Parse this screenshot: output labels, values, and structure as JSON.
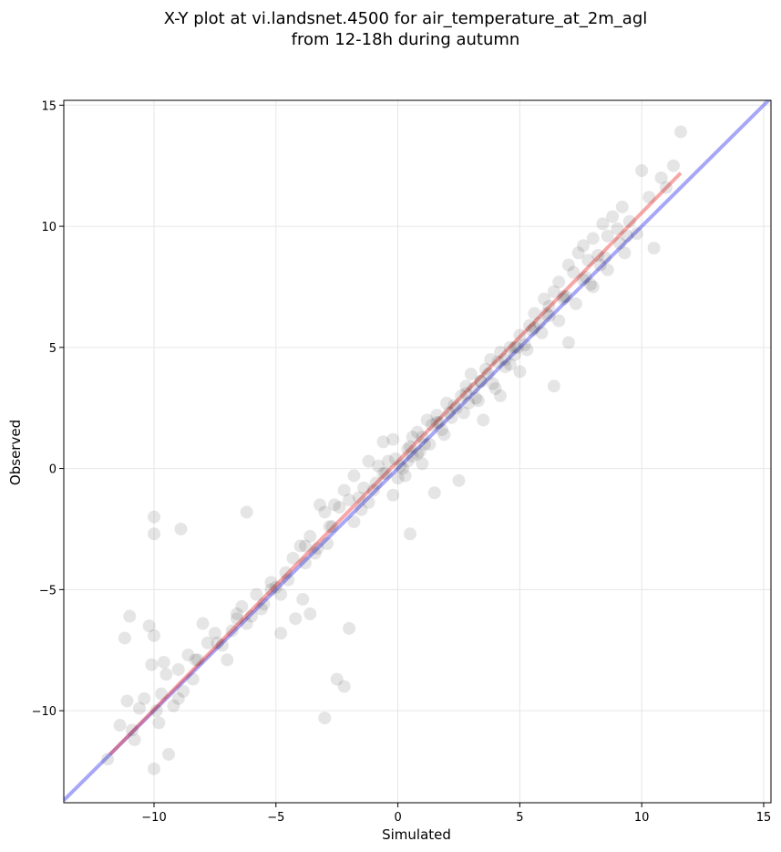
{
  "chart_data": {
    "type": "scatter",
    "title_lines": [
      "X-Y plot at vi.landsnet.4500 for air_temperature_at_2m_agl",
      "from 12-18h during autumn"
    ],
    "xlabel": "Simulated",
    "ylabel": "Observed",
    "xlim": [
      -13.7,
      15.3
    ],
    "ylim": [
      -13.8,
      15.2
    ],
    "xticks": [
      -10,
      -5,
      0,
      5,
      10,
      15
    ],
    "yticks": [
      -10,
      -5,
      0,
      5,
      10,
      15
    ],
    "xtick_labels": [
      "−10",
      "−5",
      "0",
      "5",
      "10",
      "15"
    ],
    "ytick_labels": [
      "−10",
      "−5",
      "0",
      "5",
      "10",
      "15"
    ],
    "grid": true,
    "colors": {
      "points": "#000000",
      "identity_line": "#3b3bf0",
      "regression_line": "#f03b3b",
      "grid": "#e6e6e6"
    },
    "identity_line": {
      "x": [
        -13.7,
        15.3
      ],
      "y": [
        -13.7,
        15.3
      ]
    },
    "regression_line": {
      "x": [
        -11.8,
        11.6
      ],
      "y": [
        -11.8,
        12.2
      ]
    },
    "series": [
      {
        "x": [
          -11.9,
          -11.4,
          -11.2,
          -11.1,
          -10.9,
          -10.8,
          -10.6,
          -10.4,
          -10.1,
          -10.0,
          -10.0,
          -9.9,
          -9.8,
          -9.7,
          -9.6,
          -9.4,
          -9.2,
          -9.0,
          -8.8,
          -8.6,
          -8.4,
          -8.2,
          -8.0,
          -7.8,
          -7.5,
          -7.2,
          -7.0,
          -6.8,
          -6.6,
          -6.4,
          -6.2,
          -6.0,
          -5.8,
          -5.5,
          -5.2,
          -5.0,
          -4.8,
          -4.5,
          -4.3,
          -4.0,
          -3.8,
          -3.6,
          -3.4,
          -3.2,
          -3.0,
          -2.8,
          -2.6,
          -2.4,
          -2.2,
          -2.0,
          -1.8,
          -1.6,
          -1.4,
          -1.2,
          -1.0,
          -0.8,
          -0.6,
          -0.4,
          -0.2,
          0.0,
          0.2,
          0.4,
          0.6,
          0.8,
          1.0,
          1.2,
          1.4,
          1.6,
          1.8,
          2.0,
          2.2,
          2.4,
          2.6,
          2.8,
          3.0,
          3.2,
          3.4,
          3.6,
          3.8,
          4.0,
          4.2,
          4.4,
          4.6,
          4.8,
          5.0,
          5.2,
          5.4,
          5.6,
          5.8,
          6.0,
          6.2,
          6.4,
          6.6,
          6.8,
          7.0,
          7.2,
          7.4,
          7.6,
          7.8,
          8.0,
          8.2,
          8.4,
          8.6,
          8.8,
          9.0,
          9.2,
          9.5,
          9.8,
          10.0,
          10.3,
          10.5,
          10.8,
          11.0,
          11.3,
          11.6,
          -10.0,
          -10.0,
          -8.9,
          -6.2,
          -3.3,
          -2.0,
          -2.5,
          -2.2,
          -3.0,
          -3.6,
          -1.2,
          -0.6,
          0.5,
          1.5,
          2.5,
          3.5,
          4.2,
          5.0,
          6.4,
          7.0,
          8.0,
          -9.0,
          -9.5,
          -10.2,
          -11.0,
          -4.8,
          -4.2,
          -3.9,
          -5.2,
          -2.9,
          -1.8,
          -0.2,
          0.3,
          0.8,
          1.3,
          1.9,
          2.7,
          3.3,
          3.9,
          4.6,
          5.3,
          5.9,
          6.6,
          7.3,
          7.9,
          8.6,
          9.3,
          0.1,
          0.4,
          0.6,
          0.9,
          1.1,
          -0.9,
          -0.5,
          1.7,
          2.1,
          2.9,
          3.1,
          3.7,
          4.4,
          4.9,
          5.6,
          6.1,
          6.8,
          7.6,
          8.3,
          9.1,
          -1.5,
          -2.7,
          -3.8,
          -4.6,
          -5.6,
          -6.6,
          -7.4,
          -8.3,
          -0.1,
          0.5,
          1.0,
          1.6,
          2.3,
          2.8,
          3.4,
          4.1,
          4.8,
          5.5,
          6.2,
          6.9,
          7.7,
          8.5,
          9.4
        ],
        "y": [
          -12.0,
          -10.6,
          -7.0,
          -9.6,
          -10.8,
          -11.2,
          -9.9,
          -9.5,
          -8.1,
          -6.9,
          -12.4,
          -10.0,
          -10.5,
          -9.3,
          -8.0,
          -11.8,
          -9.8,
          -8.3,
          -9.2,
          -7.7,
          -8.7,
          -7.9,
          -6.4,
          -7.2,
          -6.8,
          -7.3,
          -7.9,
          -6.7,
          -6.2,
          -5.7,
          -6.4,
          -6.1,
          -5.2,
          -5.6,
          -4.7,
          -4.9,
          -5.2,
          -4.6,
          -3.7,
          -3.2,
          -3.9,
          -2.8,
          -3.5,
          -1.5,
          -1.8,
          -2.4,
          -1.5,
          -1.6,
          -0.9,
          -1.3,
          -0.3,
          -1.2,
          -0.8,
          -1.4,
          -0.9,
          0.1,
          -0.2,
          0.3,
          1.2,
          -0.4,
          0.0,
          0.8,
          1.3,
          1.5,
          0.2,
          2.0,
          1.8,
          2.2,
          1.6,
          2.7,
          2.1,
          2.5,
          3.0,
          3.4,
          3.9,
          2.9,
          3.6,
          4.1,
          4.5,
          3.3,
          4.8,
          4.2,
          5.0,
          4.7,
          5.5,
          5.1,
          5.9,
          6.4,
          6.0,
          7.0,
          6.7,
          7.3,
          7.7,
          7.1,
          8.4,
          8.1,
          8.9,
          9.2,
          8.6,
          9.5,
          8.8,
          10.1,
          9.6,
          10.4,
          9.9,
          10.8,
          10.2,
          9.7,
          12.3,
          11.2,
          9.1,
          12.0,
          11.6,
          12.5,
          13.9,
          -2.0,
          -2.7,
          -2.5,
          -1.8,
          -3.3,
          -6.6,
          -8.7,
          -9.0,
          -10.3,
          -6.0,
          0.3,
          1.1,
          -2.7,
          -1.0,
          -0.5,
          2.0,
          3.0,
          4.0,
          3.4,
          5.2,
          7.5,
          -9.5,
          -8.5,
          -6.5,
          -6.1,
          -6.8,
          -6.2,
          -5.4,
          -5.0,
          -3.1,
          -2.2,
          -1.1,
          -0.3,
          0.6,
          1.0,
          1.4,
          2.3,
          2.8,
          3.5,
          4.3,
          4.9,
          5.6,
          6.1,
          6.8,
          7.6,
          8.2,
          8.9,
          0.1,
          0.3,
          0.5,
          0.7,
          1.0,
          -0.6,
          -0.2,
          1.9,
          2.3,
          2.7,
          3.3,
          3.9,
          4.5,
          5.0,
          5.8,
          6.4,
          7.0,
          7.8,
          8.4,
          9.3,
          -1.7,
          -2.4,
          -3.2,
          -4.3,
          -5.8,
          -6.0,
          -7.2,
          -7.9,
          0.4,
          0.9,
          1.3,
          1.9,
          2.6,
          3.1,
          3.6,
          4.4,
          5.0,
          5.7,
          6.3,
          7.1,
          7.9,
          8.7,
          9.6
        ]
      }
    ]
  }
}
